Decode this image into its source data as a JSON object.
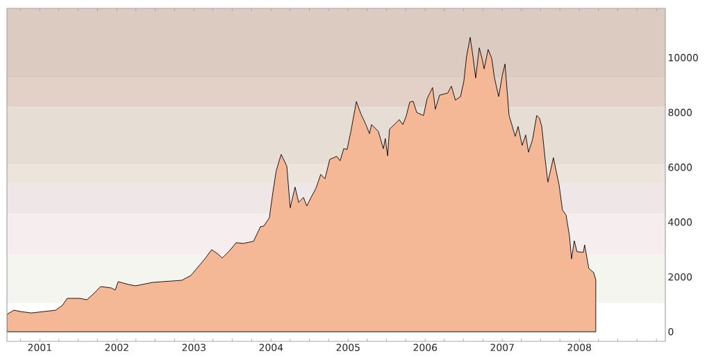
{
  "chart_data": {
    "type": "area",
    "color": "#f5b896",
    "x": [
      "2000-07-29",
      "2000-08-31",
      "2000-10-03",
      "2000-11-22",
      "2001-03-17",
      "2001-04-18",
      "2001-05-11",
      "2001-07-10",
      "2001-08-12",
      "2001-09-14",
      "2001-10-16",
      "2001-12-05",
      "2001-12-24",
      "2002-01-07",
      "2002-02-25",
      "2002-03-30",
      "2002-06-20",
      "2002-11-05",
      "2002-12-18",
      "2003-01-20",
      "2003-02-22",
      "2003-03-26",
      "2003-04-28",
      "2003-05-15",
      "2003-06-17",
      "2003-07-20",
      "2003-08-22",
      "2003-10-10",
      "2003-11-12",
      "2003-11-28",
      "2003-12-24",
      "2004-01-10",
      "2004-01-26",
      "2004-02-18",
      "2004-03-16",
      "2004-04-01",
      "2004-04-24",
      "2004-05-11",
      "2004-06-03",
      "2004-06-19",
      "2004-07-09",
      "2004-08-01",
      "2004-08-24",
      "2004-09-13",
      "2004-10-06",
      "2004-11-08",
      "2004-11-24",
      "2004-12-11",
      "2004-12-27",
      "2005-01-14",
      "2005-02-09",
      "2005-03-03",
      "2005-03-26",
      "2005-04-12",
      "2005-04-22",
      "2005-05-24",
      "2005-06-03",
      "2005-06-17",
      "2005-06-26",
      "2005-07-07",
      "2005-07-16",
      "2005-08-15",
      "2005-08-31",
      "2005-09-17",
      "2005-10-03",
      "2005-10-20",
      "2005-11-05",
      "2005-11-22",
      "2005-12-24",
      "2006-01-10",
      "2006-02-05",
      "2006-02-18",
      "2006-03-10",
      "2006-04-18",
      "2006-05-05",
      "2006-05-24",
      "2006-06-17",
      "2006-07-03",
      "2006-07-16",
      "2006-08-02",
      "2006-08-15",
      "2006-08-28",
      "2006-09-14",
      "2006-09-27",
      "2006-10-07",
      "2006-10-26",
      "2006-11-12",
      "2006-11-25",
      "2006-12-15",
      "2007-01-02",
      "2007-01-14",
      "2007-02-02",
      "2007-02-15",
      "2007-03-03",
      "2007-03-17",
      "2007-04-05",
      "2007-04-22",
      "2007-05-05",
      "2007-05-24",
      "2007-06-13",
      "2007-06-26",
      "2007-07-07",
      "2007-07-23",
      "2007-08-05",
      "2007-08-31",
      "2007-09-27",
      "2007-10-13",
      "2007-10-30",
      "2007-11-15",
      "2007-11-25",
      "2007-12-08",
      "2007-12-21",
      "2008-01-20",
      "2008-01-26",
      "2008-02-05",
      "2008-02-15",
      "2008-03-09",
      "2008-03-19"
    ],
    "values": [
      635,
      787,
      736,
      685,
      787,
      965,
      1218,
      1218,
      1168,
      1396,
      1650,
      1600,
      1523,
      1827,
      1726,
      1675,
      1802,
      1878,
      2056,
      2360,
      2665,
      2995,
      2817,
      2690,
      2944,
      3249,
      3223,
      3299,
      3832,
      3858,
      4162,
      5100,
      5890,
      6470,
      6040,
      4520,
      5280,
      4720,
      4900,
      4590,
      4900,
      5230,
      5740,
      5580,
      6290,
      6400,
      6240,
      6680,
      6650,
      7310,
      8400,
      7940,
      7560,
      7230,
      7560,
      7310,
      7050,
      6680,
      7050,
      6420,
      7390,
      7610,
      7740,
      7560,
      7870,
      8380,
      8410,
      8000,
      7890,
      8500,
      8910,
      8120,
      8630,
      8710,
      8960,
      8450,
      8580,
      9140,
      10050,
      10740,
      10050,
      9260,
      10360,
      9970,
      9590,
      10300,
      9970,
      9260,
      8580,
      9390,
      9770,
      7890,
      7560,
      7130,
      7490,
      6800,
      7180,
      6550,
      7000,
      7890,
      7790,
      7490,
      6290,
      5460,
      6350,
      5360,
      4440,
      4260,
      3500,
      2660,
      3320,
      2920,
      2900,
      3170,
      2740,
      2310,
      2160,
      1900
    ],
    "xlim": [
      "2000-07-29",
      "2009-02-12"
    ],
    "ylim": [
      -350,
      11800
    ],
    "yticks": [
      0,
      2000,
      4000,
      6000,
      8000,
      10000
    ],
    "xticks": [
      {
        "value": "2000-10-01",
        "label": null
      },
      {
        "value": "2001-01-01",
        "label": "2001"
      },
      {
        "value": "2001-04-01",
        "label": null
      },
      {
        "value": "2001-07-01",
        "label": null
      },
      {
        "value": "2001-10-01",
        "label": null
      },
      {
        "value": "2002-01-01",
        "label": "2002"
      },
      {
        "value": "2002-04-01",
        "label": null
      },
      {
        "value": "2002-07-01",
        "label": null
      },
      {
        "value": "2002-10-01",
        "label": null
      },
      {
        "value": "2003-01-01",
        "label": "2003"
      },
      {
        "value": "2003-04-01",
        "label": null
      },
      {
        "value": "2003-07-01",
        "label": null
      },
      {
        "value": "2003-10-01",
        "label": null
      },
      {
        "value": "2004-01-01",
        "label": "2004"
      },
      {
        "value": "2004-04-01",
        "label": null
      },
      {
        "value": "2004-07-01",
        "label": null
      },
      {
        "value": "2004-10-01",
        "label": null
      },
      {
        "value": "2005-01-01",
        "label": "2005"
      },
      {
        "value": "2005-04-01",
        "label": null
      },
      {
        "value": "2005-07-01",
        "label": null
      },
      {
        "value": "2005-10-01",
        "label": null
      },
      {
        "value": "2006-01-01",
        "label": "2006"
      },
      {
        "value": "2006-04-01",
        "label": null
      },
      {
        "value": "2006-07-01",
        "label": null
      },
      {
        "value": "2006-10-01",
        "label": null
      },
      {
        "value": "2007-01-01",
        "label": "2007"
      },
      {
        "value": "2007-04-01",
        "label": null
      },
      {
        "value": "2007-07-01",
        "label": null
      },
      {
        "value": "2007-10-01",
        "label": null
      },
      {
        "value": "2008-01-01",
        "label": "2008"
      },
      {
        "value": "2008-04-01",
        "label": null
      },
      {
        "value": "2008-07-01",
        "label": null
      },
      {
        "value": "2008-10-01",
        "label": null
      },
      {
        "value": "2009-01-01",
        "label": null
      }
    ],
    "bands": [
      {
        "axis": "y",
        "from": 9250,
        "to": 11800,
        "color": "#dccbc1"
      },
      {
        "axis": "y",
        "from": 8200,
        "to": 9250,
        "color": "#e3d1c8"
      },
      {
        "axis": "y",
        "from": 6100,
        "to": 8200,
        "color": "#e6ddd4"
      },
      {
        "axis": "y",
        "from": 5400,
        "to": 6100,
        "color": "#ede5dc"
      },
      {
        "axis": "y",
        "from": 4300,
        "to": 5400,
        "color": "#efe6e7"
      },
      {
        "axis": "y",
        "from": 2800,
        "to": 4300,
        "color": "#f6eeee"
      },
      {
        "axis": "y",
        "from": 1050,
        "to": 2800,
        "color": "#f5f5f0"
      }
    ]
  }
}
